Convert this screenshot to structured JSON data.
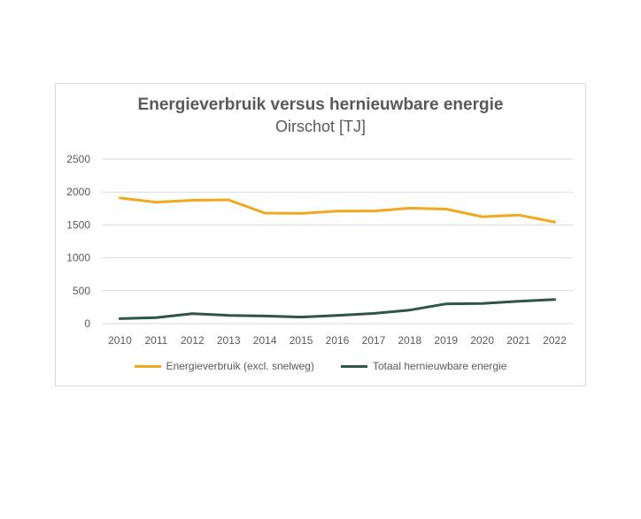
{
  "chart_data": {
    "type": "line",
    "title": "Energieverbruik versus hernieuwbare energie",
    "subtitle": "Oirschot [TJ]",
    "xlabel": "",
    "ylabel": "",
    "categories": [
      "2010",
      "2011",
      "2012",
      "2013",
      "2014",
      "2015",
      "2016",
      "2017",
      "2018",
      "2019",
      "2020",
      "2021",
      "2022"
    ],
    "yticks": [
      "0",
      "500",
      "1000",
      "1500",
      "2000",
      "2500"
    ],
    "ylim": [
      0,
      2500
    ],
    "grid": true,
    "legend_position": "bottom",
    "series": [
      {
        "name": "Energieverbruik (excl. snelweg)",
        "color": "#f2a81d",
        "values": [
          1910,
          1845,
          1875,
          1880,
          1680,
          1675,
          1710,
          1710,
          1755,
          1740,
          1625,
          1650,
          1545
        ]
      },
      {
        "name": "Totaal hernieuwbare energie",
        "color": "#2f5449",
        "values": [
          75,
          90,
          150,
          125,
          115,
          100,
          125,
          155,
          205,
          300,
          305,
          340,
          365
        ]
      }
    ]
  }
}
